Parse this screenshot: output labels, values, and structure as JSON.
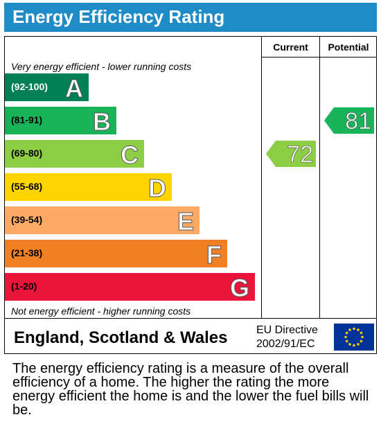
{
  "title": "Energy Efficiency Rating",
  "columns": {
    "current": "Current",
    "potential": "Potential"
  },
  "notes": {
    "top": "Very energy efficient - lower running costs",
    "bottom": "Not energy efficient - higher running costs"
  },
  "chart_data": {
    "type": "bar",
    "categories": [
      "A",
      "B",
      "C",
      "D",
      "E",
      "F",
      "G"
    ],
    "bands": [
      {
        "letter": "A",
        "range": "(92-100)",
        "color": "#008054"
      },
      {
        "letter": "B",
        "range": "(81-91)",
        "color": "#19b459"
      },
      {
        "letter": "C",
        "range": "(69-80)",
        "color": "#8dce46"
      },
      {
        "letter": "D",
        "range": "(55-68)",
        "color": "#ffd500"
      },
      {
        "letter": "E",
        "range": "(39-54)",
        "color": "#fcaa65"
      },
      {
        "letter": "F",
        "range": "(21-38)",
        "color": "#ef8023"
      },
      {
        "letter": "G",
        "range": "(1-20)",
        "color": "#e9153b"
      }
    ],
    "current": {
      "value": 72,
      "band": "C",
      "color": "#8dce46"
    },
    "potential": {
      "value": 81,
      "band": "B",
      "color": "#19b459"
    }
  },
  "footer": {
    "region": "England, Scotland & Wales",
    "directive_line1": "EU Directive",
    "directive_line2": "2002/91/EC"
  },
  "description": "The energy efficiency rating is a measure of the overall efficiency of a home. The higher the rating the more energy efficient the home is and the lower the fuel bills will be."
}
